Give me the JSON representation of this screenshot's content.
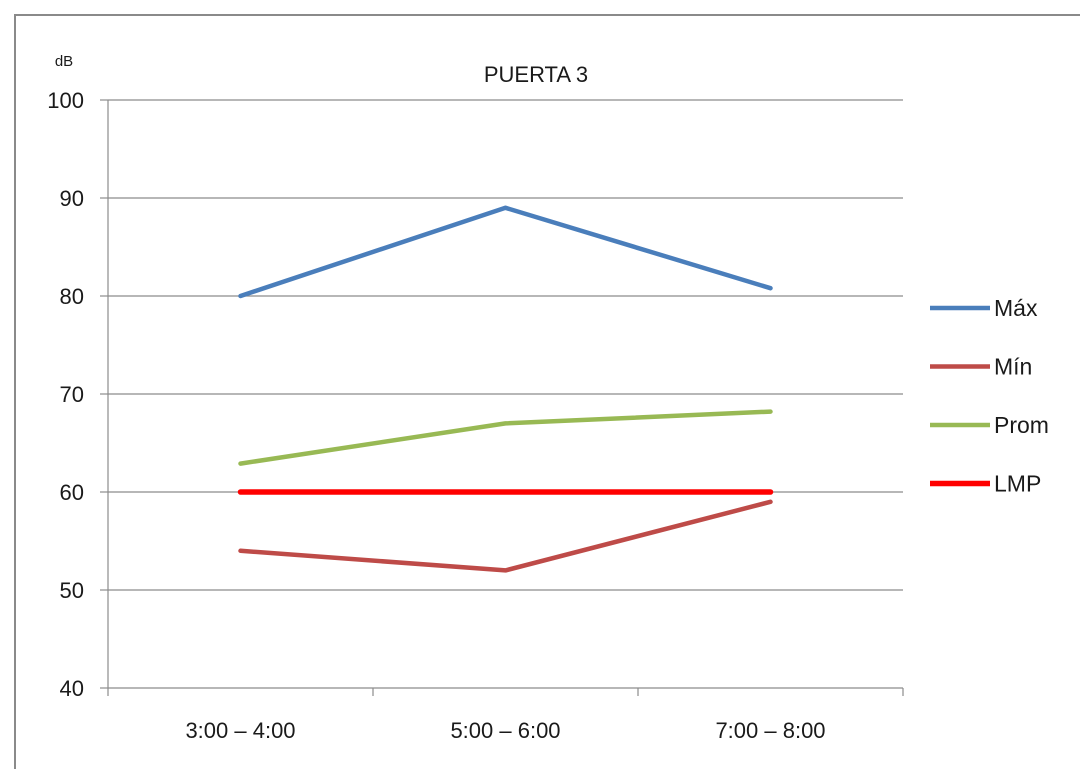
{
  "chart_data": {
    "type": "line",
    "title": "PUERTA 3",
    "ylabel": "dB",
    "ylim": [
      40,
      100
    ],
    "yticks": [
      40,
      50,
      60,
      70,
      80,
      90,
      100
    ],
    "ytick_labels": [
      "40",
      "50",
      "60",
      "70",
      "80",
      "90",
      "100"
    ],
    "categories": [
      "3:00 – 4:00",
      "5:00 – 6:00",
      "7:00 – 8:00"
    ],
    "grid": true,
    "legend_position": "right",
    "series": [
      {
        "name": "Máx",
        "values": [
          80,
          89,
          80.8
        ],
        "color": "#4a7ebb"
      },
      {
        "name": "Mín",
        "values": [
          54,
          52,
          59
        ],
        "color": "#be4b48"
      },
      {
        "name": "Prom",
        "values": [
          62.9,
          67,
          68.2
        ],
        "color": "#98b954"
      },
      {
        "name": "LMP",
        "values": [
          60,
          60,
          60
        ],
        "color": "#ff0000"
      }
    ]
  }
}
